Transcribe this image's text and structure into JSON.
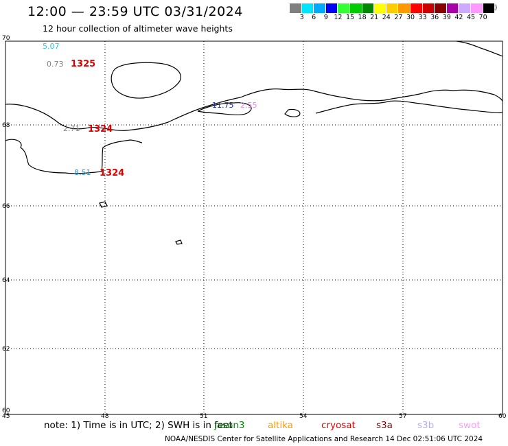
{
  "header": {
    "title": "12:00 — 23:59 UTC 03/31/2024",
    "subtitle": "12 hour collection of altimeter wave heights"
  },
  "legend": {
    "colors": [
      "#808080",
      "#00e5ff",
      "#00aaff",
      "#0000ff",
      "#33ff33",
      "#00cc00",
      "#008800",
      "#ffff00",
      "#ffcc00",
      "#ff9900",
      "#ff0000",
      "#cc0000",
      "#880000",
      "#aa00aa",
      "#ccaaff",
      "#ff99ff",
      "#000000"
    ],
    "tick_labels": [
      "3",
      "6",
      "9",
      "12",
      "15",
      "18",
      "21",
      "24",
      "27",
      "30",
      "33",
      "36",
      "39",
      "42",
      "45",
      "70"
    ],
    "unit": "(ft)"
  },
  "map": {
    "lon_labels": [
      "45",
      "48",
      "51",
      "54",
      "57",
      "60"
    ],
    "lat_labels": [
      "70",
      "68",
      "66",
      "64",
      "62",
      "60"
    ],
    "observations": [
      {
        "value": "5.07",
        "color": "#22c8e6"
      },
      {
        "value": "0.73",
        "color": "#808080"
      },
      {
        "value": "2.71",
        "color": "#808080"
      },
      {
        "value": "8.51",
        "color": "#1a9ad6"
      },
      {
        "value": "11.75",
        "color": "#1a2aa8"
      },
      {
        "value": "2.55",
        "color": "#e68ae6"
      }
    ],
    "times": [
      {
        "value": "1325",
        "color": "#e00000"
      },
      {
        "value": "1324",
        "color": "#e00000"
      },
      {
        "value": "1324",
        "color": "#e00000"
      }
    ]
  },
  "footer": {
    "note": "note:  1) Time is in UTC;  2) SWH is in feet",
    "satellites": [
      {
        "name": "jason3",
        "color": "#008800"
      },
      {
        "name": "altika",
        "color": "#ff9900"
      },
      {
        "name": "cryosat",
        "color": "#e00000"
      },
      {
        "name": "s3a",
        "color": "#880000"
      },
      {
        "name": "s3b",
        "color": "#bbaaff"
      },
      {
        "name": "swot",
        "color": "#ff99ff"
      }
    ],
    "credit": "NOAA/NESDIS Center for Satellite Applications and Research     14 Dec 02:51:06 UTC 2024"
  }
}
